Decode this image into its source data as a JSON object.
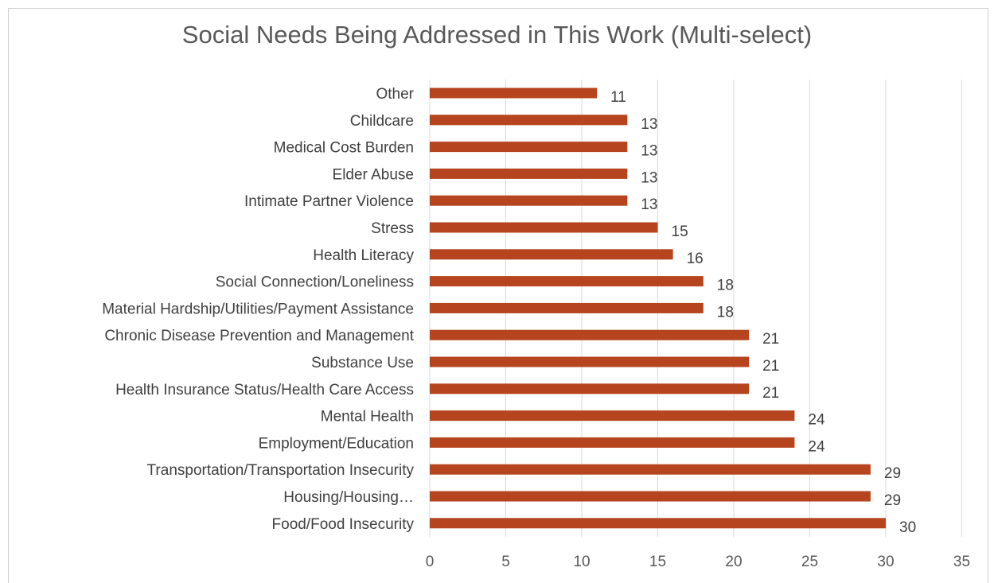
{
  "chart_data": {
    "type": "bar",
    "orientation": "horizontal",
    "title": "Social Needs Being Addressed in This Work (Multi-select)",
    "categories": [
      "Other",
      "Childcare",
      "Medical Cost Burden",
      "Elder Abuse",
      "Intimate Partner Violence",
      "Stress",
      "Health Literacy",
      "Social Connection/Loneliness",
      "Material Hardship/Utilities/Payment Assistance",
      "Chronic Disease Prevention and Management",
      "Substance Use",
      "Health Insurance Status/Health Care Access",
      "Mental Health",
      "Employment/Education",
      "Transportation/Transportation Insecurity",
      "Housing/Housing…",
      "Food/Food Insecurity"
    ],
    "values": [
      11,
      13,
      13,
      13,
      13,
      15,
      16,
      18,
      18,
      21,
      21,
      21,
      24,
      24,
      29,
      29,
      30
    ],
    "xlim": [
      0,
      35
    ],
    "xticks": [
      "0",
      "5",
      "10",
      "15",
      "20",
      "25",
      "30",
      "35"
    ],
    "grid": true,
    "bar_color": "#b5441f"
  }
}
